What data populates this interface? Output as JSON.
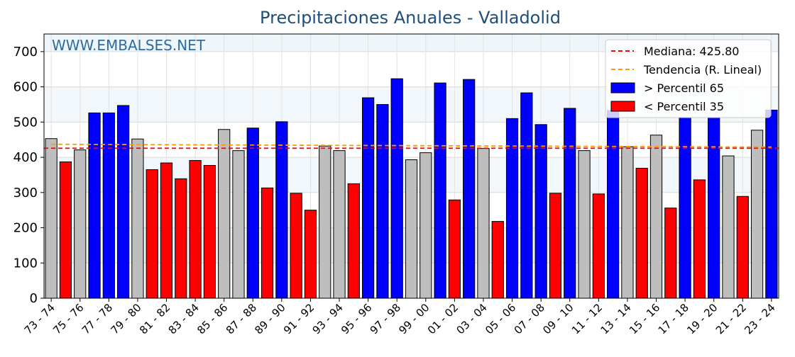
{
  "chart_data": {
    "type": "bar",
    "title": "Precipitaciones Anuales - Valladolid",
    "watermark": "WWW.EMBALSES.NET",
    "xlabel": "",
    "ylabel": "",
    "ylim": [
      0,
      750
    ],
    "yticks": [
      0,
      100,
      200,
      300,
      400,
      500,
      600,
      700
    ],
    "grid": true,
    "legend_position": "top-right",
    "categories": [
      "73 - 74",
      "74 - 75",
      "75 - 76",
      "76 - 77",
      "77 - 78",
      "78 - 79",
      "79 - 80",
      "80 - 81",
      "81 - 82",
      "82 - 83",
      "83 - 84",
      "84 - 85",
      "85 - 86",
      "86 - 87",
      "87 - 88",
      "88 - 89",
      "89 - 90",
      "90 - 91",
      "91 - 92",
      "92 - 93",
      "93 - 94",
      "94 - 95",
      "95 - 96",
      "96 - 97",
      "97 - 98",
      "98 - 99",
      "99 - 00",
      "00 - 01",
      "01 - 02",
      "02 - 03",
      "03 - 04",
      "04 - 05",
      "05 - 06",
      "06 - 07",
      "07 - 08",
      "08 - 09",
      "09 - 10",
      "10 - 11",
      "11 - 12",
      "12 - 13",
      "13 - 14",
      "14 - 15",
      "15 - 16",
      "16 - 17",
      "17 - 18",
      "18 - 19",
      "19 - 20",
      "20 - 21",
      "21 - 22",
      "22 - 23",
      "23 - 24"
    ],
    "xtick_labels": [
      "73 - 74",
      "75 - 76",
      "77 - 78",
      "79 - 80",
      "81 - 82",
      "83 - 84",
      "85 - 86",
      "87 - 88",
      "89 - 90",
      "91 - 92",
      "93 - 94",
      "95 - 96",
      "97 - 98",
      "99 - 00",
      "01 - 02",
      "03 - 04",
      "05 - 06",
      "07 - 08",
      "09 - 10",
      "11 - 12",
      "13 - 14",
      "15 - 16",
      "17 - 18",
      "19 - 20",
      "21 - 22",
      "23 - 24"
    ],
    "values": [
      453,
      387,
      421,
      526,
      526,
      547,
      452,
      365,
      384,
      339,
      391,
      377,
      479,
      419,
      483,
      313,
      501,
      298,
      250,
      432,
      419,
      325,
      569,
      550,
      623,
      393,
      413,
      611,
      279,
      621,
      425,
      218,
      510,
      583,
      493,
      298,
      539,
      419,
      296,
      533,
      430,
      369,
      463,
      256,
      513,
      336,
      513,
      404,
      289,
      477,
      534
    ],
    "classes": [
      "normal",
      "low",
      "normal",
      "high",
      "high",
      "high",
      "normal",
      "low",
      "low",
      "low",
      "low",
      "low",
      "normal",
      "normal",
      "high",
      "low",
      "high",
      "low",
      "low",
      "normal",
      "normal",
      "low",
      "high",
      "high",
      "high",
      "normal",
      "normal",
      "high",
      "low",
      "high",
      "normal",
      "low",
      "high",
      "high",
      "high",
      "low",
      "high",
      "normal",
      "low",
      "high",
      "normal",
      "low",
      "normal",
      "low",
      "high",
      "low",
      "high",
      "normal",
      "low",
      "normal",
      "high"
    ],
    "colors": {
      "high": "#0000ff",
      "low": "#ff0000",
      "normal": "#bebebe"
    },
    "median": {
      "label": "Mediana: 425.80",
      "value": 425.8,
      "color": "#ff0000"
    },
    "trend": {
      "label": "Tendencia (R. Lineal)",
      "start": 437,
      "end": 429,
      "color": "#ff9900"
    },
    "legend": [
      {
        "label": "Mediana: 425.80",
        "kind": "dashed",
        "color": "#ff0000"
      },
      {
        "label": "Tendencia (R. Lineal)",
        "kind": "dashed",
        "color": "#ff9900"
      },
      {
        "label": " > Percentil 65",
        "kind": "patch",
        "color": "#0000ff"
      },
      {
        "label": " < Percentil 35",
        "kind": "patch",
        "color": "#ff0000"
      }
    ]
  }
}
